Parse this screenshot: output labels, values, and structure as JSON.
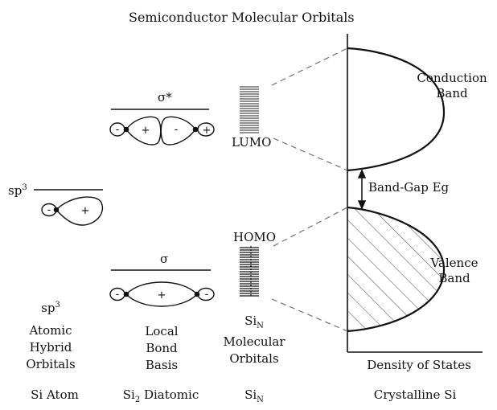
{
  "title": "Semiconductor Molecular Orbitals",
  "orbital_labels": {
    "sigma_star": "σ*",
    "sigma": "σ",
    "sp3_base": "sp",
    "sp3_sup": "3",
    "lumo": "LUMO",
    "homo": "HOMO"
  },
  "band_labels": {
    "conduction_line1": "Conduction",
    "conduction_line2": "Band",
    "valence_line1": "Valence",
    "valence_line2": "Band",
    "band_gap": "Band-Gap Eg"
  },
  "lobe_signs": {
    "plus": "+",
    "minus": "-"
  },
  "column_labels": {
    "col1": {
      "sym_base": "sp",
      "sym_sup": "3",
      "line1": "Atomic",
      "line2": "Hybrid",
      "line3": "Orbitals"
    },
    "col2": {
      "line1": "Local",
      "line2": "Bond",
      "line3": "Basis"
    },
    "col3": {
      "sym_base": "Si",
      "sym_sub": "N",
      "line1": "Molecular",
      "line2": "Orbitals"
    },
    "col4": {
      "line1": "Density of States"
    }
  },
  "footer_labels": {
    "col1": "Si Atom",
    "col2_base": "Si",
    "col2_sub": "2",
    "col2_rest": " Diatomic",
    "col3_base": "Si",
    "col3_sub": "N",
    "col4": "Crystalline Si"
  },
  "colors": {
    "ink": "#111111",
    "dashed": "#666666",
    "background": "#ffffff"
  }
}
